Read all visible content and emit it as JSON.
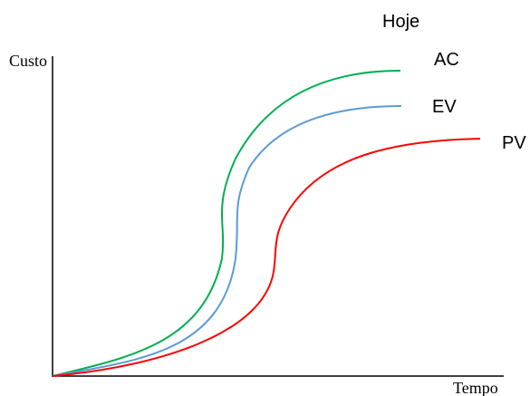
{
  "diagram": {
    "top_label": "Hoje",
    "y_axis_label": "Custo",
    "x_axis_label": "Tempo",
    "curves": [
      {
        "name": "AC",
        "color": "#00b050"
      },
      {
        "name": "EV",
        "color": "#5b9bd5"
      },
      {
        "name": "PV",
        "color": "#ff0000"
      }
    ]
  }
}
